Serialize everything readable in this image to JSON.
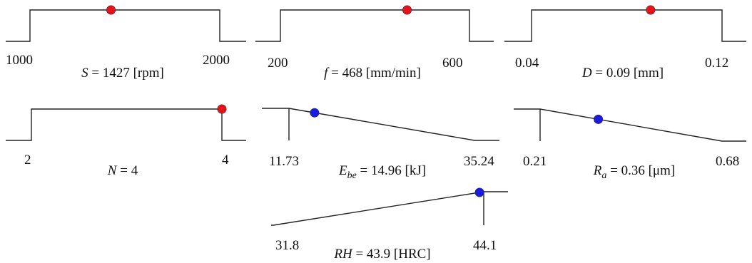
{
  "colors": {
    "input_marker": "#e8121a",
    "response_marker": "#1a1ae0",
    "line": "#222222"
  },
  "panels": [
    {
      "kind": "input",
      "low": "1000",
      "high": "2000",
      "marker_fraction": 0.427,
      "label": {
        "symbol": "S",
        "sub": "",
        "value": " = 1427 [rpm]"
      }
    },
    {
      "kind": "input",
      "low": "200",
      "high": "600",
      "marker_fraction": 0.67,
      "label": {
        "symbol": "f",
        "sub": "",
        "value": " = 468 [mm/min]"
      }
    },
    {
      "kind": "input",
      "low": "0.04",
      "high": "0.12",
      "marker_fraction": 0.625,
      "label": {
        "symbol": "D",
        "sub": "",
        "value": " = 0.09 [mm]"
      }
    },
    {
      "kind": "input",
      "low": "2",
      "high": "4",
      "marker_fraction": 1.0,
      "label": {
        "symbol": "N",
        "sub": "",
        "value": " = 4"
      }
    },
    {
      "kind": "response-min",
      "low": "11.73",
      "high": "35.24",
      "marker_fraction": 0.138,
      "label": {
        "symbol": "E",
        "sub": "be",
        "value": " = 14.96 [kJ]"
      }
    },
    {
      "kind": "response-min",
      "low": "0.21",
      "high": "0.68",
      "marker_fraction": 0.32,
      "label": {
        "symbol": "R",
        "sub": "a",
        "value": " = 0.36 [μm]"
      }
    },
    {
      "kind": "response-max",
      "low": "31.8",
      "high": "44.1",
      "marker_fraction": 0.98,
      "label": {
        "symbol": "RH",
        "sub": "",
        "value": " = 43.9 [HRC]"
      }
    }
  ]
}
